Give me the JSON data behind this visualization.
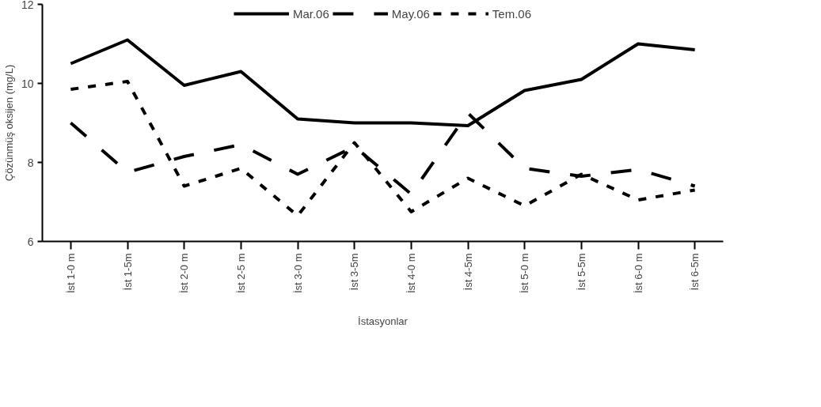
{
  "chart_data": {
    "type": "line",
    "xlabel": "İstasyonlar",
    "ylabel": "Çözünmüş oksijen (mg/L)",
    "categories": [
      "İst 1-0 m",
      "İst 1-5m",
      "İst 2-0 m",
      "İst 2-5 m",
      "İst 3-0 m",
      "İst 3-5m",
      "İst 4-0 m",
      "İst 4-5m",
      "İst 5-0 m",
      "İst 5-5m",
      "İst 6-0 m",
      "İst 6-5m"
    ],
    "ylim": [
      6,
      12
    ],
    "yticks": [
      6,
      8,
      10,
      12
    ],
    "grid": false,
    "legend": "top",
    "marker": "none",
    "series": [
      {
        "name": "Mar.06",
        "color": "#000000",
        "line_style": "solid",
        "values": [
          10.5,
          11.1,
          9.95,
          10.3,
          9.1,
          9.0,
          9.0,
          8.93,
          9.82,
          10.1,
          11.0,
          10.85
        ]
      },
      {
        "name": "May.06",
        "color": "#000000",
        "line_style": "longdash",
        "values": [
          9.0,
          7.75,
          8.15,
          8.45,
          7.7,
          8.4,
          7.2,
          9.25,
          7.85,
          7.65,
          7.82,
          7.4
        ]
      },
      {
        "name": "Tem.06",
        "color": "#000000",
        "line_style": "dashed",
        "values": [
          9.85,
          10.05,
          7.4,
          7.85,
          6.65,
          8.5,
          6.75,
          7.6,
          6.9,
          7.7,
          7.05,
          7.3
        ]
      }
    ]
  }
}
